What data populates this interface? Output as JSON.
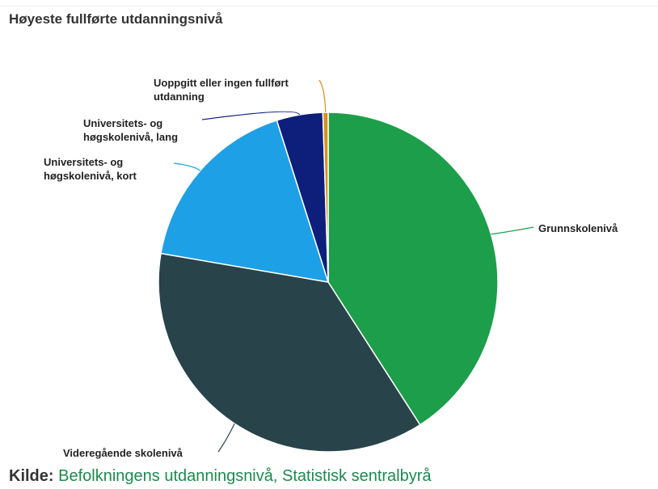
{
  "chart_data": {
    "type": "pie",
    "title": "Høyeste fullførte utdanningsnivå",
    "categories": [
      "Grunnskolenivå",
      "Videregående skolenivå",
      "Universitets- og høgskolenivå, kort",
      "Universitets- og høgskolenivå, lang",
      "Uoppgitt eller ingen fullført utdanning"
    ],
    "values": [
      40.9,
      36.8,
      17.4,
      4.4,
      0.5
    ],
    "colors": [
      "#1d9e4a",
      "#28434a",
      "#1ea0e6",
      "#0d1f7a",
      "#d4921e"
    ]
  },
  "source_label": "Kilde:",
  "source": "Befolkningens utdanningsnivå, Statistisk sentralbyrå"
}
